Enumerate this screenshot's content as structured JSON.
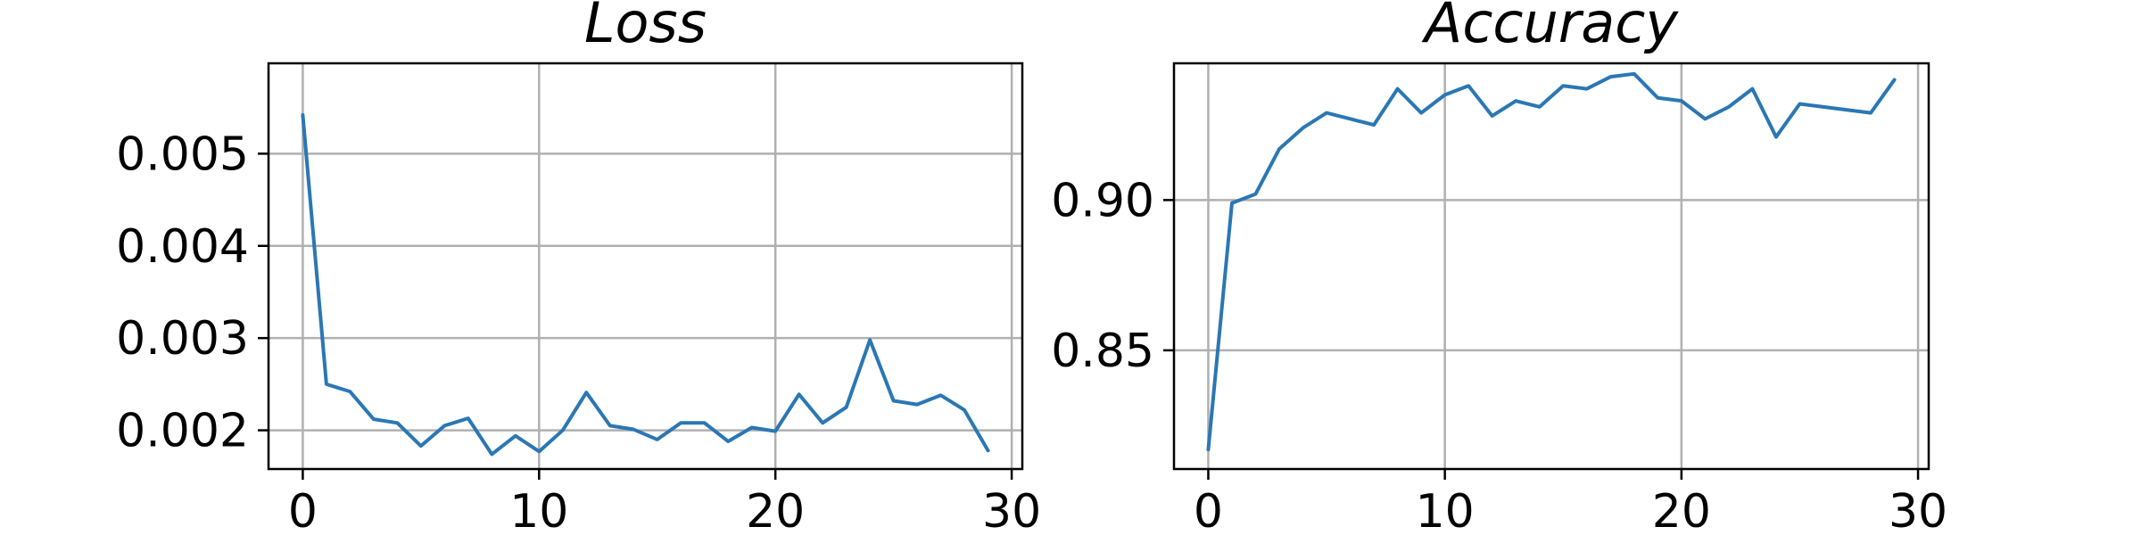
{
  "colors": {
    "series": "#2a77b4",
    "grid": "#b0b0b0",
    "frame": "#000000"
  },
  "chart_data": [
    {
      "type": "line",
      "title": "Loss",
      "xlabel": "",
      "ylabel": "",
      "grid": true,
      "xlim": [
        -1.45,
        30.45
      ],
      "ylim": [
        0.00158,
        0.00598
      ],
      "xticks": [
        0,
        10,
        20,
        30
      ],
      "xtick_labels": [
        "0",
        "10",
        "20",
        "30"
      ],
      "yticks": [
        0.002,
        0.003,
        0.004,
        0.005
      ],
      "ytick_labels": [
        "0.002",
        "0.003",
        "0.004",
        "0.005"
      ],
      "series": [
        {
          "x": [
            0,
            1,
            2,
            3,
            4,
            5,
            6,
            7,
            8,
            9,
            10,
            11,
            12,
            13,
            14,
            15,
            16,
            17,
            18,
            19,
            20,
            21,
            22,
            23,
            24,
            25,
            26,
            27,
            28,
            29
          ],
          "y": [
            0.00542,
            0.0025,
            0.00242,
            0.00212,
            0.00208,
            0.00183,
            0.00205,
            0.00213,
            0.00174,
            0.00194,
            0.00177,
            0.002,
            0.00241,
            0.00205,
            0.00201,
            0.0019,
            0.00208,
            0.00208,
            0.00188,
            0.00203,
            0.00199,
            0.00239,
            0.00208,
            0.00225,
            0.00298,
            0.00232,
            0.00228,
            0.00238,
            0.00222,
            0.00178
          ]
        }
      ]
    },
    {
      "type": "line",
      "title": "Accuracy",
      "xlabel": "",
      "ylabel": "",
      "grid": true,
      "xlim": [
        -1.45,
        30.45
      ],
      "ylim": [
        0.8105,
        0.9455
      ],
      "xticks": [
        0,
        10,
        20,
        30
      ],
      "xtick_labels": [
        "0",
        "10",
        "20",
        "30"
      ],
      "yticks": [
        0.85,
        0.9
      ],
      "ytick_labels": [
        "0.85",
        "0.90"
      ],
      "series": [
        {
          "x": [
            0,
            1,
            2,
            3,
            4,
            5,
            6,
            7,
            8,
            9,
            10,
            11,
            12,
            13,
            14,
            15,
            16,
            17,
            18,
            19,
            20,
            21,
            22,
            23,
            24,
            25,
            26,
            27,
            28,
            29
          ],
          "y": [
            0.817,
            0.899,
            0.902,
            0.917,
            0.924,
            0.929,
            0.927,
            0.925,
            0.937,
            0.929,
            0.935,
            0.938,
            0.928,
            0.933,
            0.931,
            0.938,
            0.937,
            0.941,
            0.942,
            0.934,
            0.933,
            0.927,
            0.931,
            0.937,
            0.921,
            0.932,
            0.931,
            0.93,
            0.929,
            0.94
          ]
        }
      ]
    }
  ]
}
